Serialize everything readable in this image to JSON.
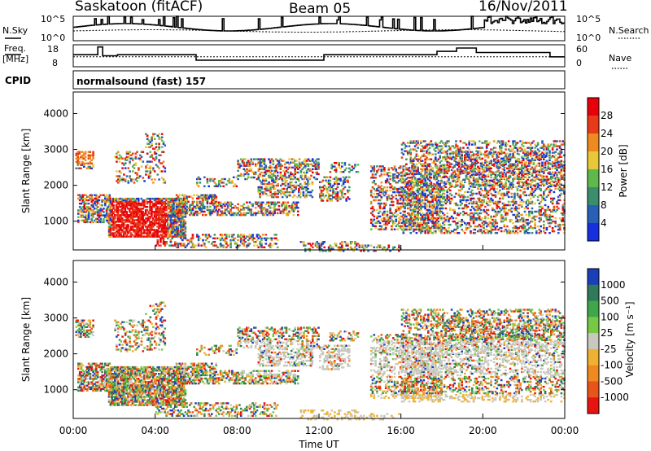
{
  "header": {
    "station": "Saskatoon (fitACF)",
    "beam": "Beam 05",
    "date": "16/Nov/2011"
  },
  "top_panels": {
    "nsky_label": "N.Sky",
    "nsky_ticks": [
      "10^5",
      "10^0"
    ],
    "nsearch_label": "N.Search",
    "nsearch_ticks": [
      "10^5",
      "10^0"
    ],
    "freq_label_1": "Freq.",
    "freq_label_2": "[MHz]",
    "freq_ticks": [
      "18",
      "8"
    ],
    "nave_label": "Nave",
    "nave_ticks": [
      "60",
      "0"
    ],
    "cpid_label": "CPID",
    "cpid_value": "normalsound (fast) 157"
  },
  "chart_data": [
    {
      "type": "heatmap",
      "name": "power",
      "ylabel": "Slant Range [km]",
      "yticks": [
        "1000",
        "2000",
        "3000",
        "4000"
      ],
      "ylim": [
        200,
        4600
      ],
      "xlim": [
        0,
        24
      ],
      "colorbar": {
        "label": "Power [dB]",
        "ticks": [
          "4",
          "8",
          "12",
          "16",
          "20",
          "24",
          "28"
        ],
        "colors": [
          "#1630e0",
          "#2a5fb8",
          "#3a8e6e",
          "#5fb84a",
          "#e8c838",
          "#ef8a20",
          "#e83a18",
          "#e8000a"
        ]
      }
    },
    {
      "type": "heatmap",
      "name": "velocity",
      "ylabel": "Slant Range [km]",
      "yticks": [
        "1000",
        "2000",
        "3000",
        "4000"
      ],
      "ylim": [
        200,
        4600
      ],
      "xlim": [
        0,
        24
      ],
      "xlabel": "Time UT",
      "xticks": [
        "00:00",
        "04:00",
        "08:00",
        "12:00",
        "16:00",
        "20:00",
        "00:00"
      ],
      "colorbar": {
        "label": "Velocity [m s⁻¹]",
        "ticks": [
          "1000",
          "500",
          "100",
          "25",
          "-25",
          "-100",
          "-500",
          "-1000"
        ],
        "colors": [
          "#1b3fb8",
          "#2f7a5a",
          "#3fa64a",
          "#76c944",
          "#c8c8c0",
          "#efb132",
          "#f08a20",
          "#e8541a",
          "#e81410"
        ]
      }
    }
  ]
}
